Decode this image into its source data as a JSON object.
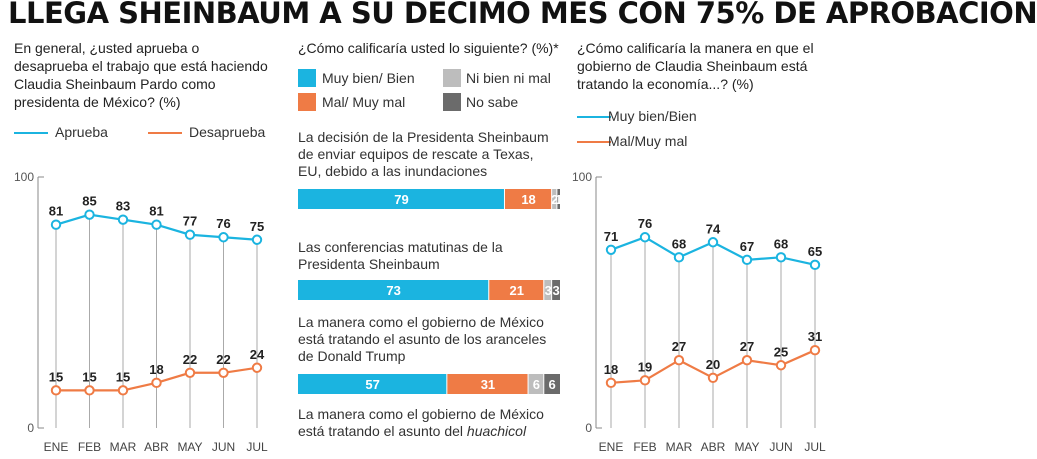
{
  "title": "LLEGA SHEINBAUM A SU DÉCIMO MES CON 75% DE APROBACIÓN",
  "colors": {
    "blue": "#1bb4e0",
    "orange": "#ef7b45",
    "lightgray": "#bdbdbd",
    "darkgray": "#6b6b6b",
    "axis": "#888888"
  },
  "left": {
    "question": "En general, ¿usted aprueba o desaprueba el trabajo que está haciendo Claudia Sheinbaum Pardo como presidenta de México? (%)"
  },
  "middle": {
    "question": "¿Cómo calificaría usted lo siguiente? (%)*",
    "legend": [
      "Muy bien/ Bien",
      "Ni bien ni mal",
      "Mal/ Muy mal",
      "No sabe"
    ]
  },
  "right": {
    "question": "¿Cómo calificaría la manera en que el gobierno de Claudia Sheinbaum está tratando la economía...? (%)"
  },
  "chart_data": [
    {
      "type": "line",
      "categories": [
        "ENE",
        "FEB",
        "MAR",
        "ABR",
        "MAY",
        "JUN",
        "JUL"
      ],
      "ylim": [
        0,
        100
      ],
      "yticks": [
        "100",
        "0"
      ],
      "series": [
        {
          "name": "Aprueba",
          "color": "#1bb4e0",
          "values": [
            81,
            85,
            83,
            81,
            77,
            76,
            75
          ]
        },
        {
          "name": "Desaprueba",
          "color": "#ef7b45",
          "values": [
            15,
            15,
            15,
            18,
            22,
            22,
            24
          ]
        }
      ]
    },
    {
      "type": "bar",
      "stacked": true,
      "orientation": "horizontal",
      "categories": [
        "La decisión de la Presidenta Sheinbaum de enviar equipos de rescate a Texas, EU, debido a las inundaciones",
        "Las conferencias matutinas de la Presidenta Sheinbaum",
        "La manera como el gobierno de México está tratando el asunto de los aranceles de Donald Trump",
        "La manera como el gobierno de México está tratando el asunto del huachicol"
      ],
      "series": [
        {
          "name": "Muy bien/ Bien",
          "color": "#1bb4e0",
          "values": [
            79,
            73,
            57,
            null
          ]
        },
        {
          "name": "Mal/ Muy mal",
          "color": "#ef7b45",
          "values": [
            18,
            21,
            31,
            null
          ]
        },
        {
          "name": "Ni bien ni mal",
          "color": "#bdbdbd",
          "values": [
            2,
            3,
            6,
            null
          ]
        },
        {
          "name": "No sabe",
          "color": "#6b6b6b",
          "values": [
            1,
            3,
            6,
            null
          ]
        }
      ]
    },
    {
      "type": "line",
      "categories": [
        "ENE",
        "FEB",
        "MAR",
        "ABR",
        "MAY",
        "JUN",
        "JUL"
      ],
      "ylim": [
        0,
        100
      ],
      "yticks": [
        "100",
        "0"
      ],
      "series": [
        {
          "name": "Muy bien/Bien",
          "color": "#1bb4e0",
          "values": [
            71,
            76,
            68,
            74,
            67,
            68,
            65
          ]
        },
        {
          "name": "Mal/Muy mal",
          "color": "#ef7b45",
          "values": [
            18,
            19,
            27,
            20,
            27,
            25,
            31
          ]
        }
      ]
    }
  ]
}
